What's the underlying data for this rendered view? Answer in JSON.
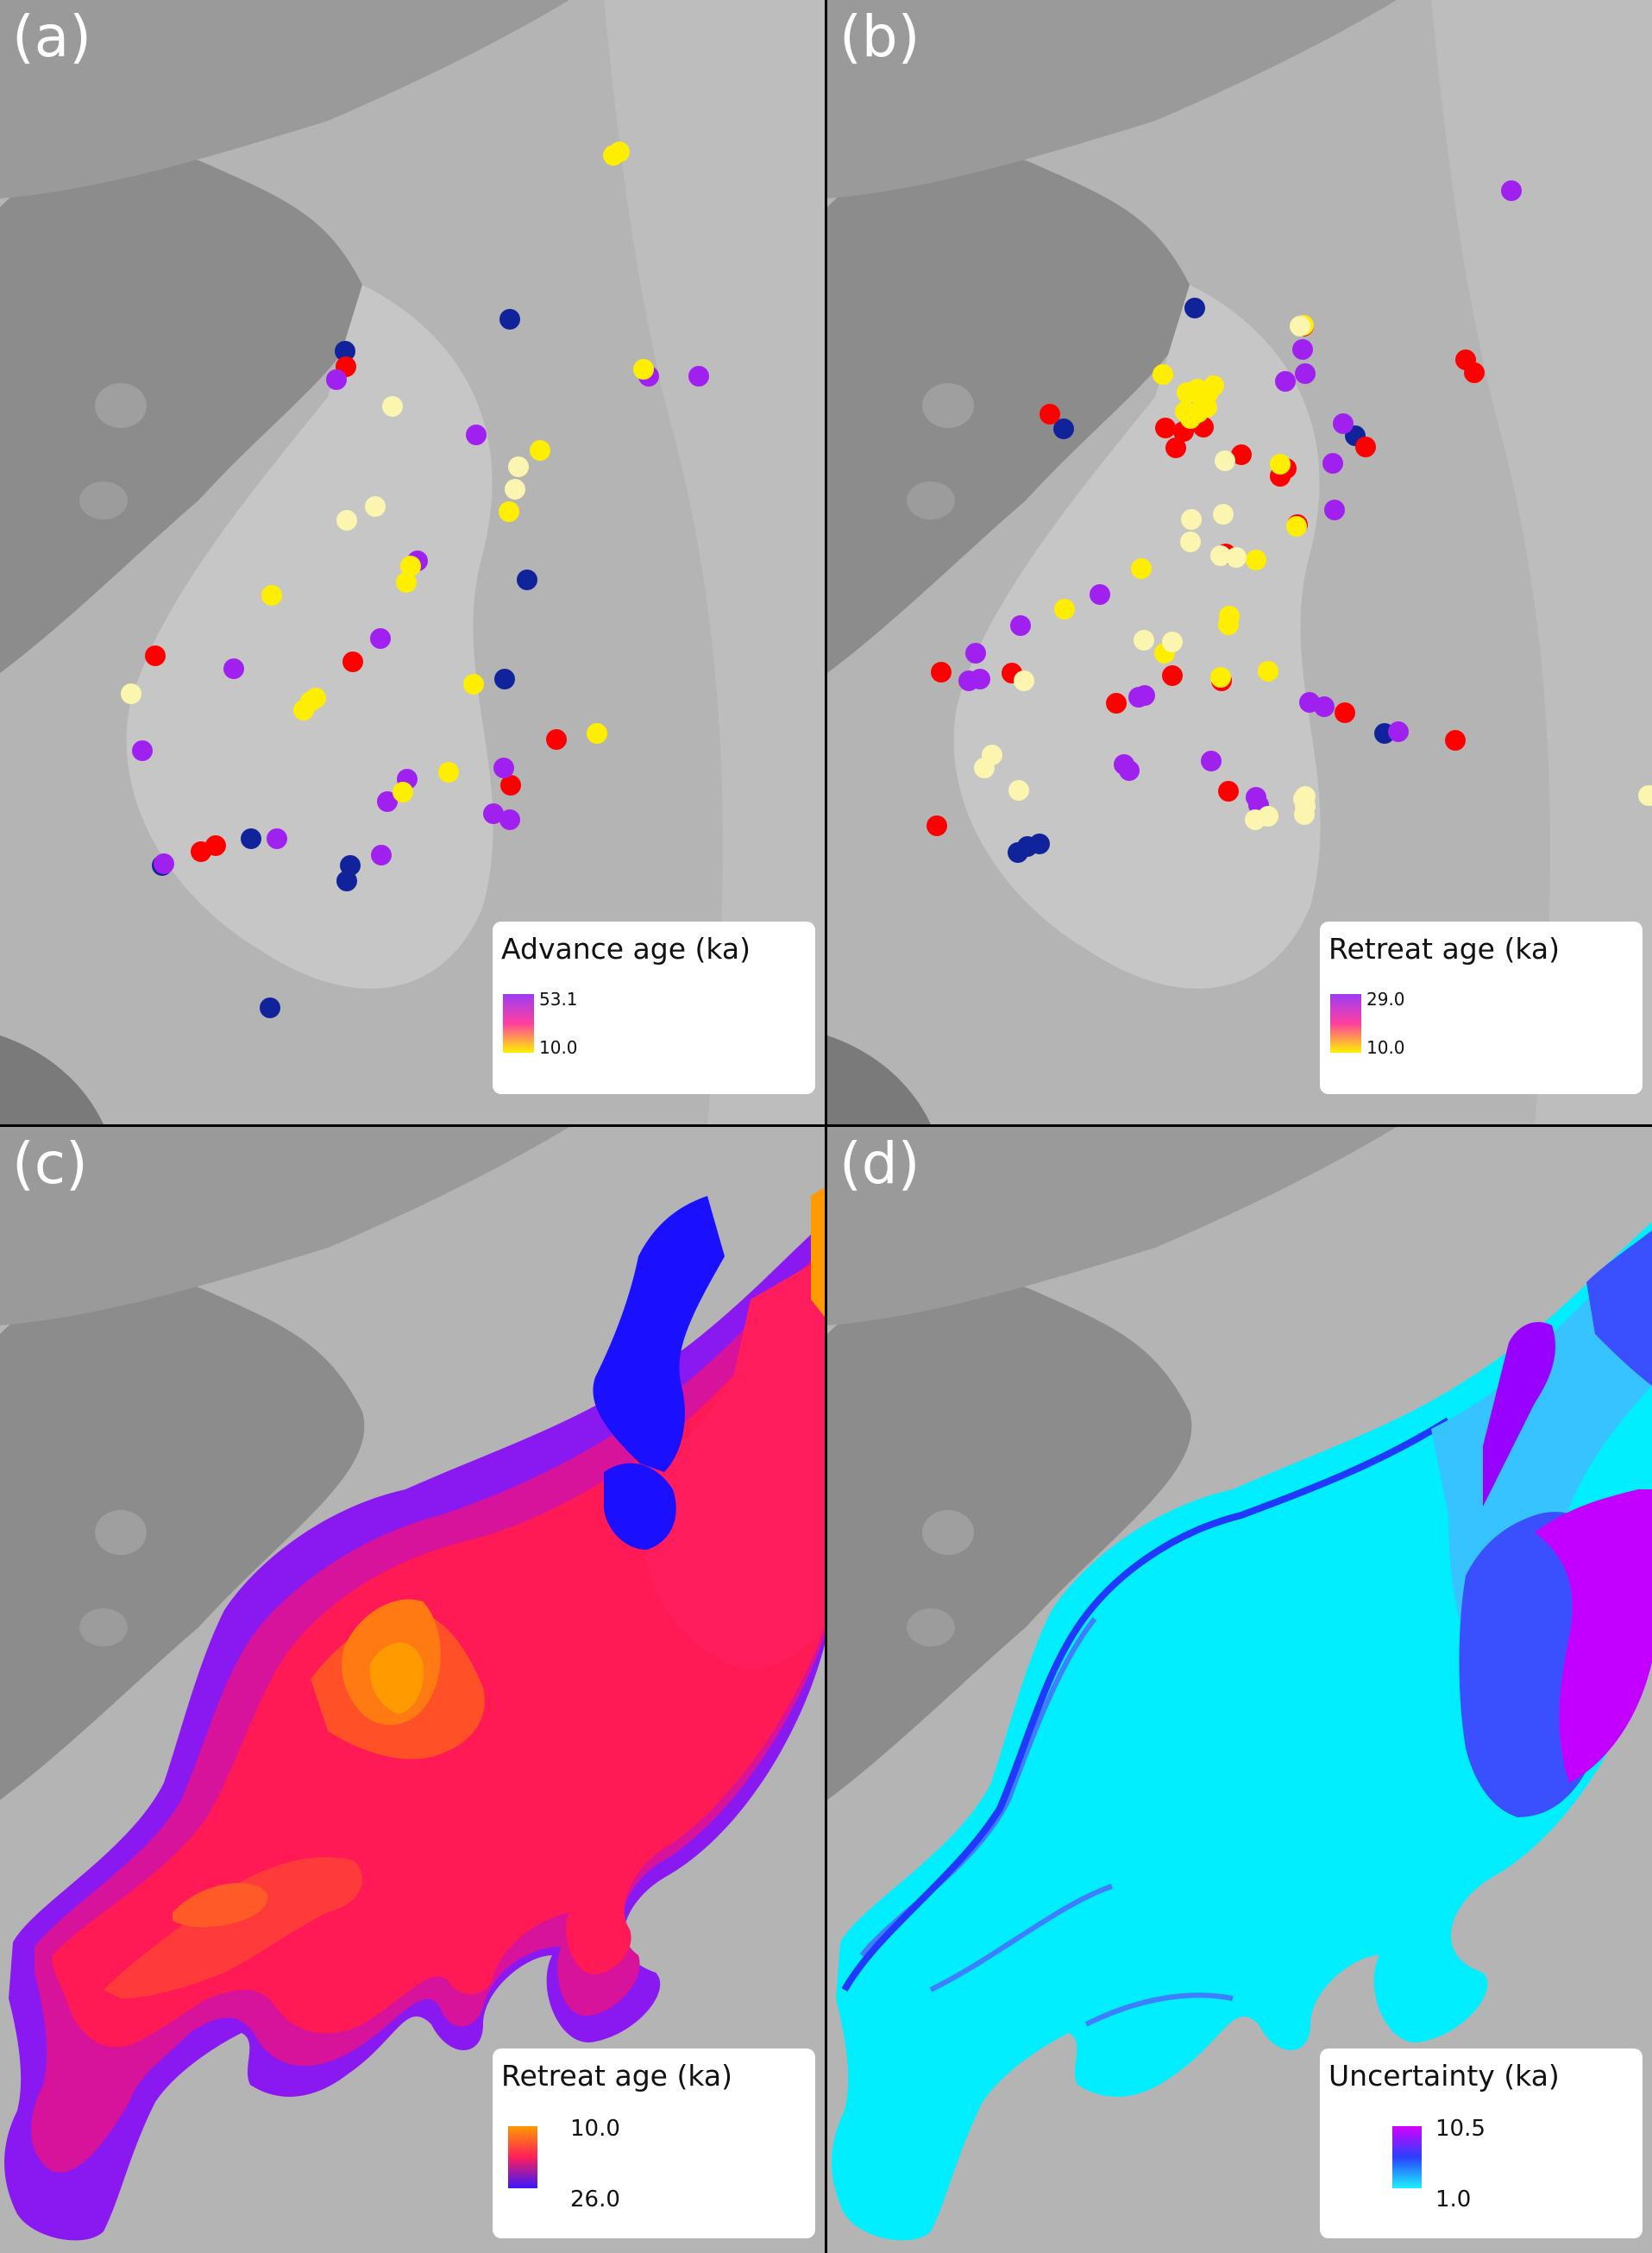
{
  "panels": [
    {
      "label": "(a)",
      "legend_title": "Advance age (ka)",
      "legend_max": "53.1",
      "legend_min": "10.0",
      "colors": {
        "high": "#9d3cf5",
        "mid": "#ff3fa0",
        "low": "#fff200"
      }
    },
    {
      "label": "(b)",
      "legend_title": "Retreat age (ka)",
      "legend_max": "29.0",
      "legend_min": "10.0",
      "colors": {
        "high": "#9d3cf5",
        "mid": "#ff3fa0",
        "low": "#fff200"
      }
    },
    {
      "label": "(c)",
      "legend_title": "Retreat age (ka)",
      "legend_top": "10.0",
      "legend_bottom": "26.0",
      "colors": {
        "top": "#ff9a00",
        "mid": "#ff1f5a",
        "bottom": "#3b16ff"
      }
    },
    {
      "label": "(d)",
      "legend_title": "Uncertainty (ka)",
      "legend_top": "10.5",
      "legend_bottom": "1.0",
      "colors": {
        "top": "#d600ff",
        "mid": "#2a40ff",
        "bottom": "#1ff0ff"
      }
    }
  ],
  "marker_colors": {
    "navy": "#10239a",
    "red": "#ff0000",
    "purple": "#a020f0",
    "yellow": "#ffee00",
    "pale": "#fbf5b0"
  }
}
